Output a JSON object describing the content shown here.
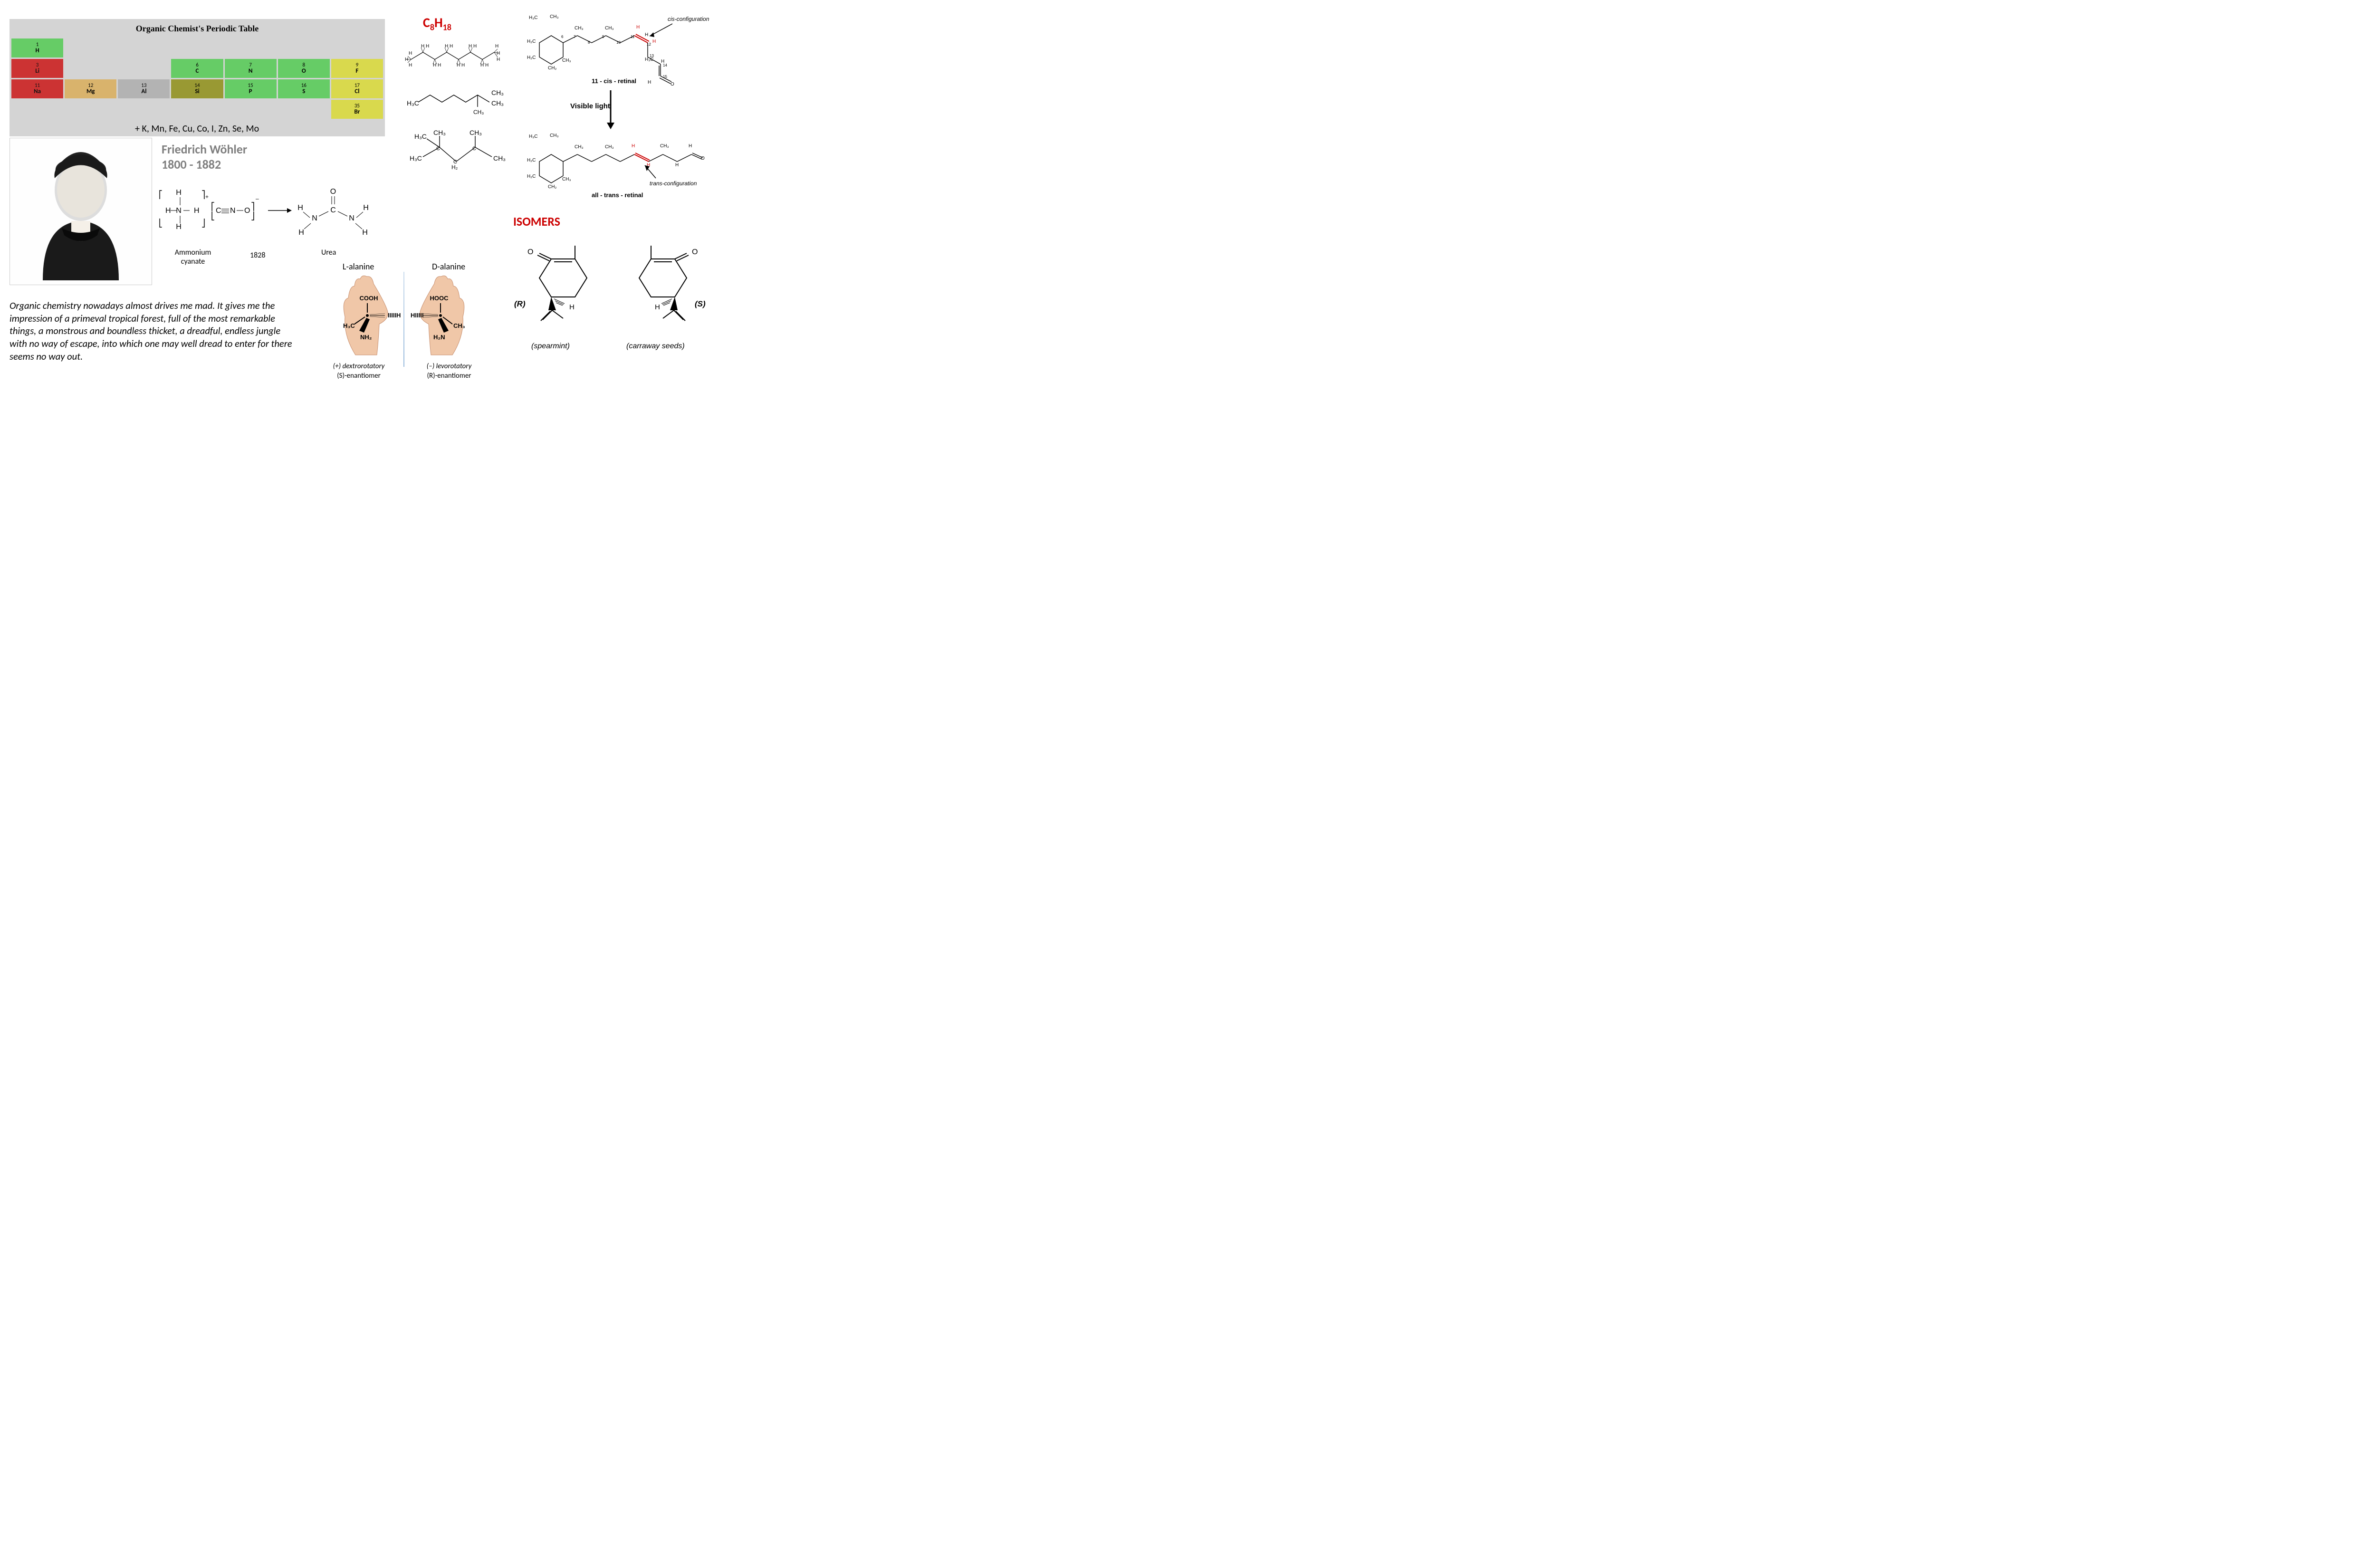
{
  "periodicTable": {
    "title": "Organic Chemist's Periodic Table",
    "rows": [
      [
        {
          "num": "1",
          "sym": "H",
          "cls": "c-green"
        },
        {
          "cls": "c-blank"
        },
        {
          "cls": "c-blank"
        },
        {
          "cls": "c-blank"
        },
        {
          "cls": "c-blank"
        },
        {
          "cls": "c-blank"
        },
        {
          "cls": "c-blank"
        }
      ],
      [
        {
          "num": "3",
          "sym": "Li",
          "cls": "c-red"
        },
        {
          "cls": "c-blank"
        },
        {
          "cls": "c-blank"
        },
        {
          "num": "6",
          "sym": "C",
          "cls": "c-green"
        },
        {
          "num": "7",
          "sym": "N",
          "cls": "c-green"
        },
        {
          "num": "8",
          "sym": "O",
          "cls": "c-green"
        },
        {
          "num": "9",
          "sym": "F",
          "cls": "c-yellow"
        }
      ],
      [
        {
          "num": "11",
          "sym": "Na",
          "cls": "c-red"
        },
        {
          "num": "12",
          "sym": "Mg",
          "cls": "c-tan"
        },
        {
          "num": "13",
          "sym": "Al",
          "cls": "c-gray"
        },
        {
          "num": "14",
          "sym": "Si",
          "cls": "c-olive"
        },
        {
          "num": "15",
          "sym": "P",
          "cls": "c-green"
        },
        {
          "num": "16",
          "sym": "S",
          "cls": "c-green"
        },
        {
          "num": "17",
          "sym": "Cl",
          "cls": "c-yellow"
        }
      ],
      [
        {
          "cls": "c-blank"
        },
        {
          "cls": "c-blank"
        },
        {
          "cls": "c-blank"
        },
        {
          "cls": "c-blank"
        },
        {
          "cls": "c-blank"
        },
        {
          "cls": "c-blank"
        },
        {
          "num": "35",
          "sym": "Br",
          "cls": "c-yellow"
        }
      ]
    ],
    "extra": "+ K, Mn, Fe, Cu, Co, I, Zn, Se, Mo"
  },
  "wohler": {
    "name": "Friedrich Wöhler",
    "years": "1800 - 1882",
    "portraitAlt": "[portrait etching]",
    "reaction": {
      "reactantLabel": "Ammonium cyanate",
      "productLabel": "Urea",
      "year": "1828"
    }
  },
  "quote": "Organic chemistry nowadays almost drives me mad. It gives me the impression of a primeval tropical forest, full of the most remarkable things, a monstrous and boundless thicket, a dreadful, endless jungle with no way of escape, into which one may well dread to enter for there seems no way out.",
  "alanine": {
    "leftTitle": "L-alanine",
    "rightTitle": "D-alanine",
    "left": {
      "cooh": "COOH",
      "h": "H",
      "ch3": "H₃C",
      "nh2": "NH₂",
      "rot": "(+) dextrorotatory",
      "enant": "(S)-enantiomer"
    },
    "right": {
      "cooh": "HOOC",
      "h": "H",
      "ch3": "CH₃",
      "nh2": "H₂N",
      "rot": "(–) levorotatory",
      "enant": "(R)-enantiomer"
    }
  },
  "c8h18": {
    "formula": "C₈H₁₈",
    "isomer1": "n-octane (full H shown)",
    "isomer2": {
      "left": "H₃C",
      "rightTop": "CH₃",
      "rightBot": "CH₃"
    },
    "isomer3": {
      "tl": "H₃C",
      "t": "CH₃",
      "tr": "CH₃",
      "bl": "H₃C",
      "b": "H₂",
      "br": "CH₃"
    }
  },
  "retinal": {
    "cisLabel": "cis-configuration",
    "transLabel": "trans-configuration",
    "cisName": "11 - cis - retinal",
    "transName": "all - trans - retinal",
    "arrowLabel": "Visible light",
    "atoms": {
      "h3c": "H₃C",
      "ch3": "CH₃",
      "h2c": "H₂C",
      "h": "H",
      "o": "O"
    }
  },
  "isomersTitle": "ISOMERS",
  "carvone": {
    "r": "(R)",
    "s": "(S)",
    "rName": "(spearmint)",
    "sName": "(carraway seeds)",
    "o": "O",
    "h": "H"
  },
  "colors": {
    "red": "#cc0000",
    "green": "#66cc66",
    "tableBg": "#d4d4d4"
  }
}
